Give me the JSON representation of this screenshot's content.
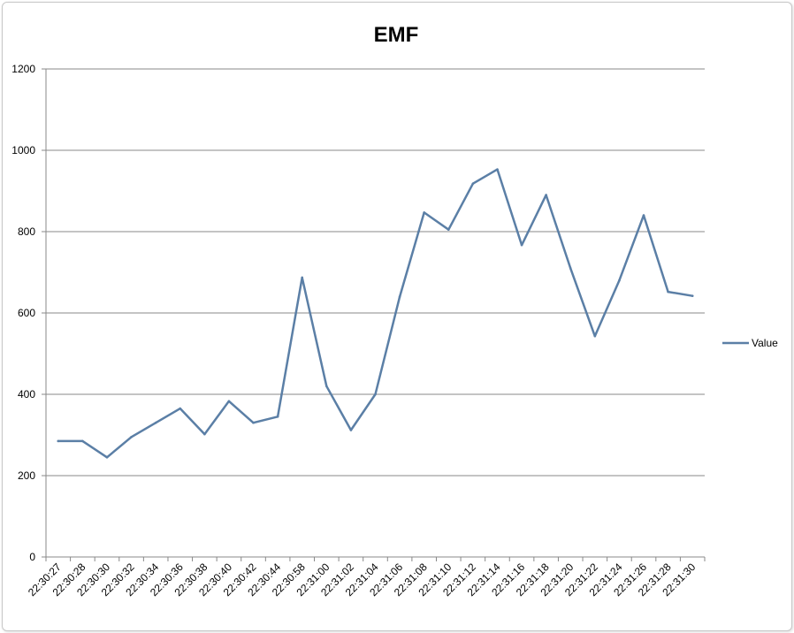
{
  "chart_data": {
    "type": "line",
    "title": "EMF",
    "xlabel": "",
    "ylabel": "",
    "ylim": [
      0,
      1200
    ],
    "yticks": [
      0,
      200,
      400,
      600,
      800,
      1000,
      1200
    ],
    "grid": true,
    "legend_position": "right",
    "categories": [
      "22:30:27",
      "22:30:28",
      "22:30:30",
      "22:30:32",
      "22:30:34",
      "22:30:36",
      "22:30:38",
      "22:30:40",
      "22:30:42",
      "22:30:44",
      "22:30:58",
      "22:31:00",
      "22:31:02",
      "22:31:04",
      "22:31:06",
      "22:31:08",
      "22:31:10",
      "22:31:12",
      "22:31:14",
      "22:31:16",
      "22:31:18",
      "22:31:20",
      "22:31:22",
      "22:31:24",
      "22:31:26",
      "22:31:28",
      "22:31:30"
    ],
    "series": [
      {
        "name": "Value",
        "color": "#5b7fa6",
        "values": [
          285,
          285,
          245,
          295,
          330,
          365,
          302,
          383,
          330,
          345,
          687,
          420,
          312,
          400,
          640,
          847,
          805,
          918,
          953,
          767,
          890,
          710,
          543,
          680,
          840,
          652,
          642
        ]
      }
    ]
  }
}
